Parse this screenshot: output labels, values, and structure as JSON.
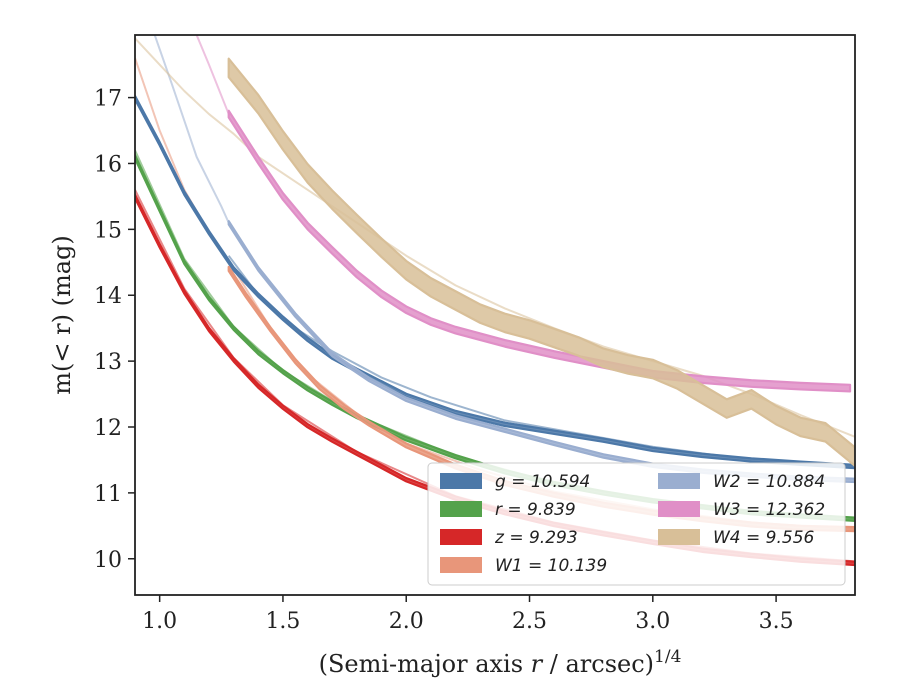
{
  "chart_data": {
    "type": "line",
    "title": "",
    "xlabel_prefix": "(Semi-major axis ",
    "xlabel_var": "r",
    "xlabel_mid": " / arcsec)",
    "xlabel_sup": "1/4",
    "ylabel": "m(< r) (mag)",
    "xlim": [
      0.9,
      3.82
    ],
    "ylim": [
      17.95,
      9.45
    ],
    "y_inverted": true,
    "xticks": [
      1.0,
      1.5,
      2.0,
      2.5,
      3.0,
      3.5
    ],
    "xtick_labels": [
      "1.0",
      "1.5",
      "2.0",
      "2.5",
      "3.0",
      "3.5"
    ],
    "yticks": [
      10,
      11,
      12,
      13,
      14,
      15,
      16,
      17
    ],
    "ytick_labels": [
      "10",
      "11",
      "12",
      "13",
      "14",
      "15",
      "16",
      "17"
    ],
    "grid": false,
    "legend_position": "lower-right",
    "series": [
      {
        "name": "g = 10.594",
        "color": "#4c78a8",
        "band_width": 0.05,
        "x": [
          0.9,
          1.0,
          1.1,
          1.2,
          1.3,
          1.4,
          1.5,
          1.6,
          1.7,
          1.8,
          2.0,
          2.2,
          2.4,
          2.6,
          2.8,
          3.0,
          3.2,
          3.4,
          3.6,
          3.82
        ],
        "y": [
          17.0,
          16.3,
          15.55,
          14.95,
          14.4,
          14.0,
          13.65,
          13.33,
          13.06,
          12.86,
          12.48,
          12.22,
          12.04,
          11.92,
          11.8,
          11.66,
          11.57,
          11.5,
          11.45,
          11.4
        ],
        "faint": {
          "x": [
            1.28,
            1.4,
            1.55,
            1.7,
            1.9,
            2.1,
            2.4,
            2.7,
            3.0,
            3.3,
            3.6,
            3.82
          ],
          "y": [
            14.6,
            14.0,
            13.5,
            13.15,
            12.75,
            12.45,
            12.1,
            11.9,
            11.7,
            11.55,
            11.45,
            11.4
          ]
        }
      },
      {
        "name": "r = 9.839",
        "color": "#54a24b",
        "band_width": 0.05,
        "x": [
          0.9,
          1.0,
          1.1,
          1.2,
          1.3,
          1.4,
          1.5,
          1.6,
          1.7,
          1.8,
          2.0,
          2.2,
          2.4,
          2.6,
          2.8,
          3.0,
          3.2,
          3.4,
          3.6,
          3.82
        ],
        "y": [
          16.1,
          15.3,
          14.5,
          13.95,
          13.5,
          13.13,
          12.84,
          12.58,
          12.36,
          12.16,
          11.82,
          11.55,
          11.32,
          11.14,
          11.0,
          10.88,
          10.79,
          10.7,
          10.65,
          10.6
        ],
        "faint": {
          "x": [
            0.9,
            1.1,
            1.3,
            1.5,
            1.8,
            2.2,
            2.6,
            3.0,
            3.4,
            3.82
          ],
          "y": [
            16.2,
            14.55,
            13.52,
            12.85,
            12.17,
            11.56,
            11.15,
            10.88,
            10.7,
            10.62
          ]
        }
      },
      {
        "name": "z = 9.293",
        "color": "#d62728",
        "band_width": 0.05,
        "x": [
          0.9,
          1.0,
          1.1,
          1.2,
          1.3,
          1.4,
          1.5,
          1.6,
          1.7,
          1.8,
          2.0,
          2.2,
          2.4,
          2.6,
          2.8,
          3.0,
          3.2,
          3.4,
          3.6,
          3.82
        ],
        "y": [
          15.5,
          14.75,
          14.05,
          13.48,
          13.02,
          12.62,
          12.3,
          12.02,
          11.8,
          11.6,
          11.2,
          10.92,
          10.7,
          10.52,
          10.38,
          10.25,
          10.13,
          10.05,
          9.98,
          9.93
        ],
        "faint": {
          "x": [
            0.9,
            1.1,
            1.3,
            1.5,
            1.8,
            2.2,
            2.6,
            3.0,
            3.4,
            3.82
          ],
          "y": [
            15.6,
            14.1,
            13.05,
            12.33,
            11.62,
            10.95,
            10.55,
            10.28,
            10.08,
            9.96
          ]
        }
      },
      {
        "name": "W1 = 10.139",
        "color": "#e8967a",
        "band_width": 0.06,
        "x": [
          1.28,
          1.35,
          1.45,
          1.55,
          1.65,
          1.75,
          1.85,
          2.0,
          2.2,
          2.4,
          2.6,
          2.8,
          3.0,
          3.2,
          3.4,
          3.6,
          3.82
        ],
        "y": [
          14.4,
          14.0,
          13.48,
          13.0,
          12.6,
          12.3,
          12.05,
          11.72,
          11.4,
          11.15,
          10.97,
          10.82,
          10.7,
          10.6,
          10.52,
          10.47,
          10.45
        ],
        "faint": {
          "x": [
            0.9,
            1.0,
            1.1,
            1.2,
            1.3,
            1.45,
            1.6,
            1.8,
            2.0,
            2.3,
            2.6,
            3.0,
            3.4,
            3.82
          ],
          "y": [
            17.6,
            16.5,
            15.6,
            14.95,
            14.4,
            13.5,
            12.8,
            12.2,
            11.75,
            11.35,
            11.02,
            10.75,
            10.55,
            10.45
          ]
        }
      },
      {
        "name": "W2 = 10.884",
        "color": "#9aaed0",
        "band_width": 0.05,
        "x": [
          1.28,
          1.4,
          1.55,
          1.7,
          1.85,
          2.0,
          2.2,
          2.4,
          2.6,
          2.8,
          3.0,
          3.2,
          3.4,
          3.6,
          3.82
        ],
        "y": [
          15.1,
          14.4,
          13.7,
          13.1,
          12.72,
          12.42,
          12.15,
          11.95,
          11.75,
          11.56,
          11.42,
          11.33,
          11.27,
          11.22,
          11.19
        ],
        "faint": {
          "x": [
            0.98,
            1.05,
            1.15,
            1.25,
            1.28
          ],
          "y": [
            17.95,
            17.2,
            16.1,
            15.35,
            15.1
          ]
        }
      },
      {
        "name": "W3 = 12.362",
        "color": "#e08fc7",
        "band_width": 0.1,
        "x": [
          1.28,
          1.4,
          1.5,
          1.6,
          1.7,
          1.8,
          1.9,
          2.0,
          2.1,
          2.2,
          2.4,
          2.6,
          2.8,
          3.0,
          3.2,
          3.4,
          3.6,
          3.8
        ],
        "y": [
          16.75,
          16.05,
          15.5,
          15.05,
          14.68,
          14.32,
          14.02,
          13.78,
          13.6,
          13.47,
          13.27,
          13.1,
          12.95,
          12.8,
          12.72,
          12.66,
          12.62,
          12.59
        ],
        "faint": {
          "x": [
            1.15,
            1.2,
            1.28
          ],
          "y": [
            17.95,
            17.5,
            16.75
          ]
        }
      },
      {
        "name": "W4 = 9.556",
        "color": "#d8bf98",
        "band_width": 0.28,
        "x": [
          1.28,
          1.4,
          1.5,
          1.6,
          1.7,
          1.8,
          1.9,
          2.0,
          2.1,
          2.2,
          2.3,
          2.4,
          2.5,
          2.6,
          2.7,
          2.8,
          2.9,
          3.0,
          3.1,
          3.2,
          3.3,
          3.4,
          3.5,
          3.6,
          3.7,
          3.82
        ],
        "y": [
          17.45,
          16.9,
          16.35,
          15.85,
          15.45,
          15.08,
          14.72,
          14.38,
          14.12,
          13.92,
          13.72,
          13.58,
          13.48,
          13.35,
          13.22,
          13.05,
          12.95,
          12.88,
          12.72,
          12.5,
          12.28,
          12.42,
          12.18,
          12.0,
          11.92,
          11.55
        ],
        "faint": {
          "x": [
            0.9,
            1.0,
            1.1,
            1.2,
            1.3,
            1.4,
            1.6,
            1.8,
            2.0,
            2.2,
            2.4,
            2.6,
            2.8,
            3.0,
            3.2,
            3.4,
            3.6,
            3.82
          ],
          "y": [
            17.9,
            17.5,
            17.1,
            16.75,
            16.45,
            16.1,
            15.6,
            15.1,
            14.6,
            14.15,
            13.8,
            13.5,
            13.22,
            13.0,
            12.78,
            12.5,
            12.18,
            11.85
          ]
        }
      }
    ]
  }
}
